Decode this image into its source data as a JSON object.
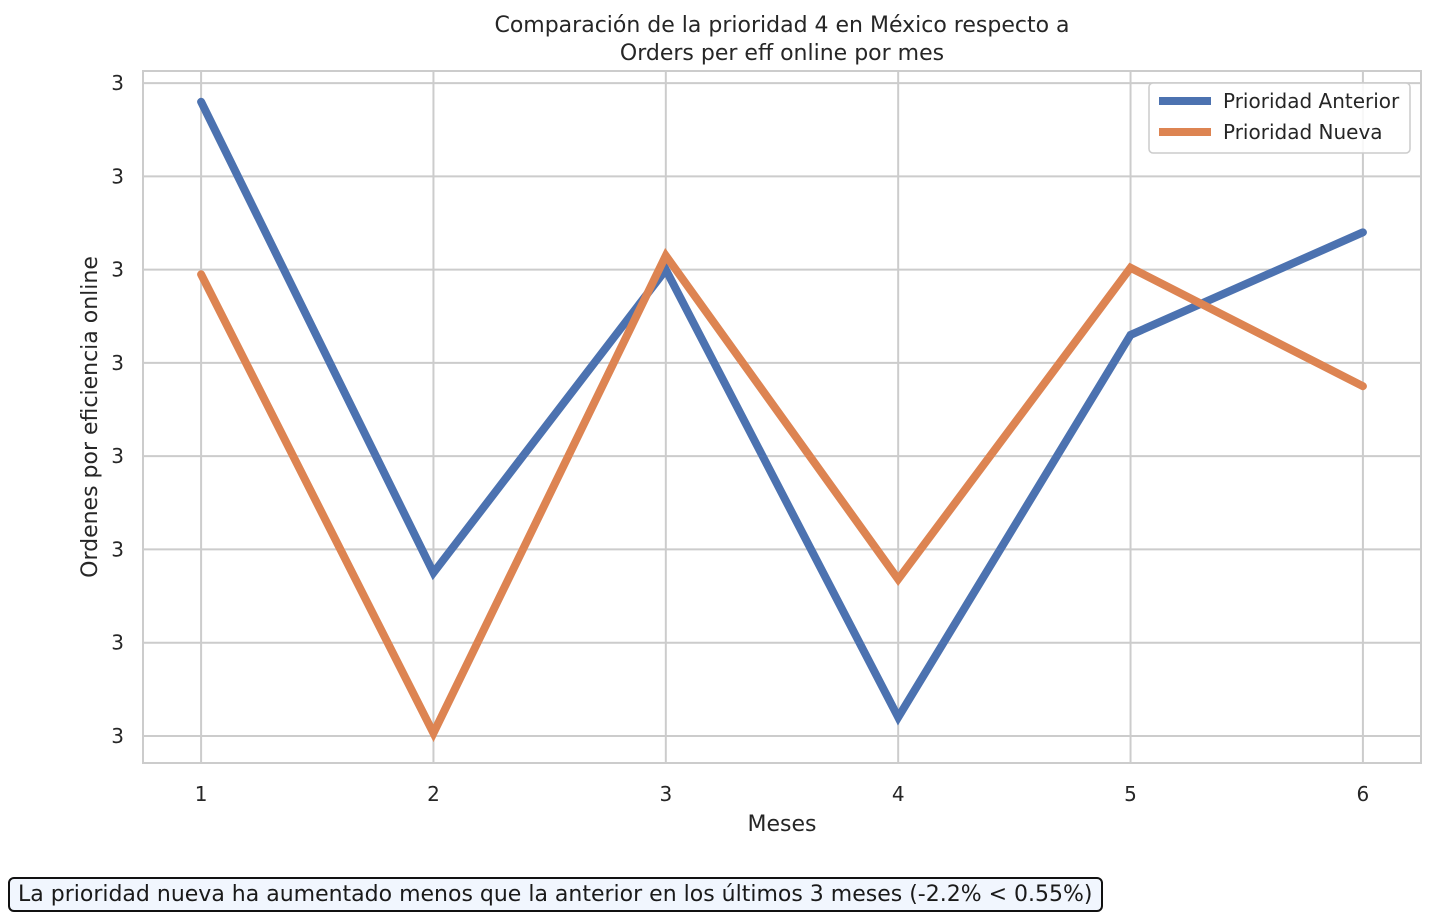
{
  "chart_data": {
    "type": "line",
    "title_line1": "Comparación de la prioridad 4 en México respecto a",
    "title_line2": "Orders per eff online por mes",
    "xlabel": "Meses",
    "ylabel": "Ordenes por eficiencia online",
    "x": [
      1,
      2,
      3,
      4,
      5,
      6
    ],
    "xlim": [
      0.75,
      6.25
    ],
    "ylim": [
      -0.29,
      7.13
    ],
    "y_ticks": [
      0,
      1,
      2,
      3,
      4,
      5,
      6,
      7
    ],
    "y_tick_labels": [
      "3",
      "3",
      "3",
      "3",
      "3",
      "3",
      "3",
      "3"
    ],
    "y_scale_note": "tick labels all print 3; values expressed on relative gridline scale 0-7",
    "grid": true,
    "legend_position": "top-right",
    "series": [
      {
        "name": "Prioridad Anterior",
        "color": "#4c72b0",
        "values": [
          6.8,
          1.75,
          5.0,
          0.2,
          4.3,
          5.4
        ]
      },
      {
        "name": "Prioridad Nueva",
        "color": "#dd8452",
        "values": [
          4.95,
          0.03,
          5.15,
          1.68,
          5.02,
          3.75
        ]
      }
    ]
  },
  "annotation": {
    "text": "La prioridad nueva ha aumentado menos que la anterior en los últimos 3 meses (-2.2% < 0.55%)"
  }
}
